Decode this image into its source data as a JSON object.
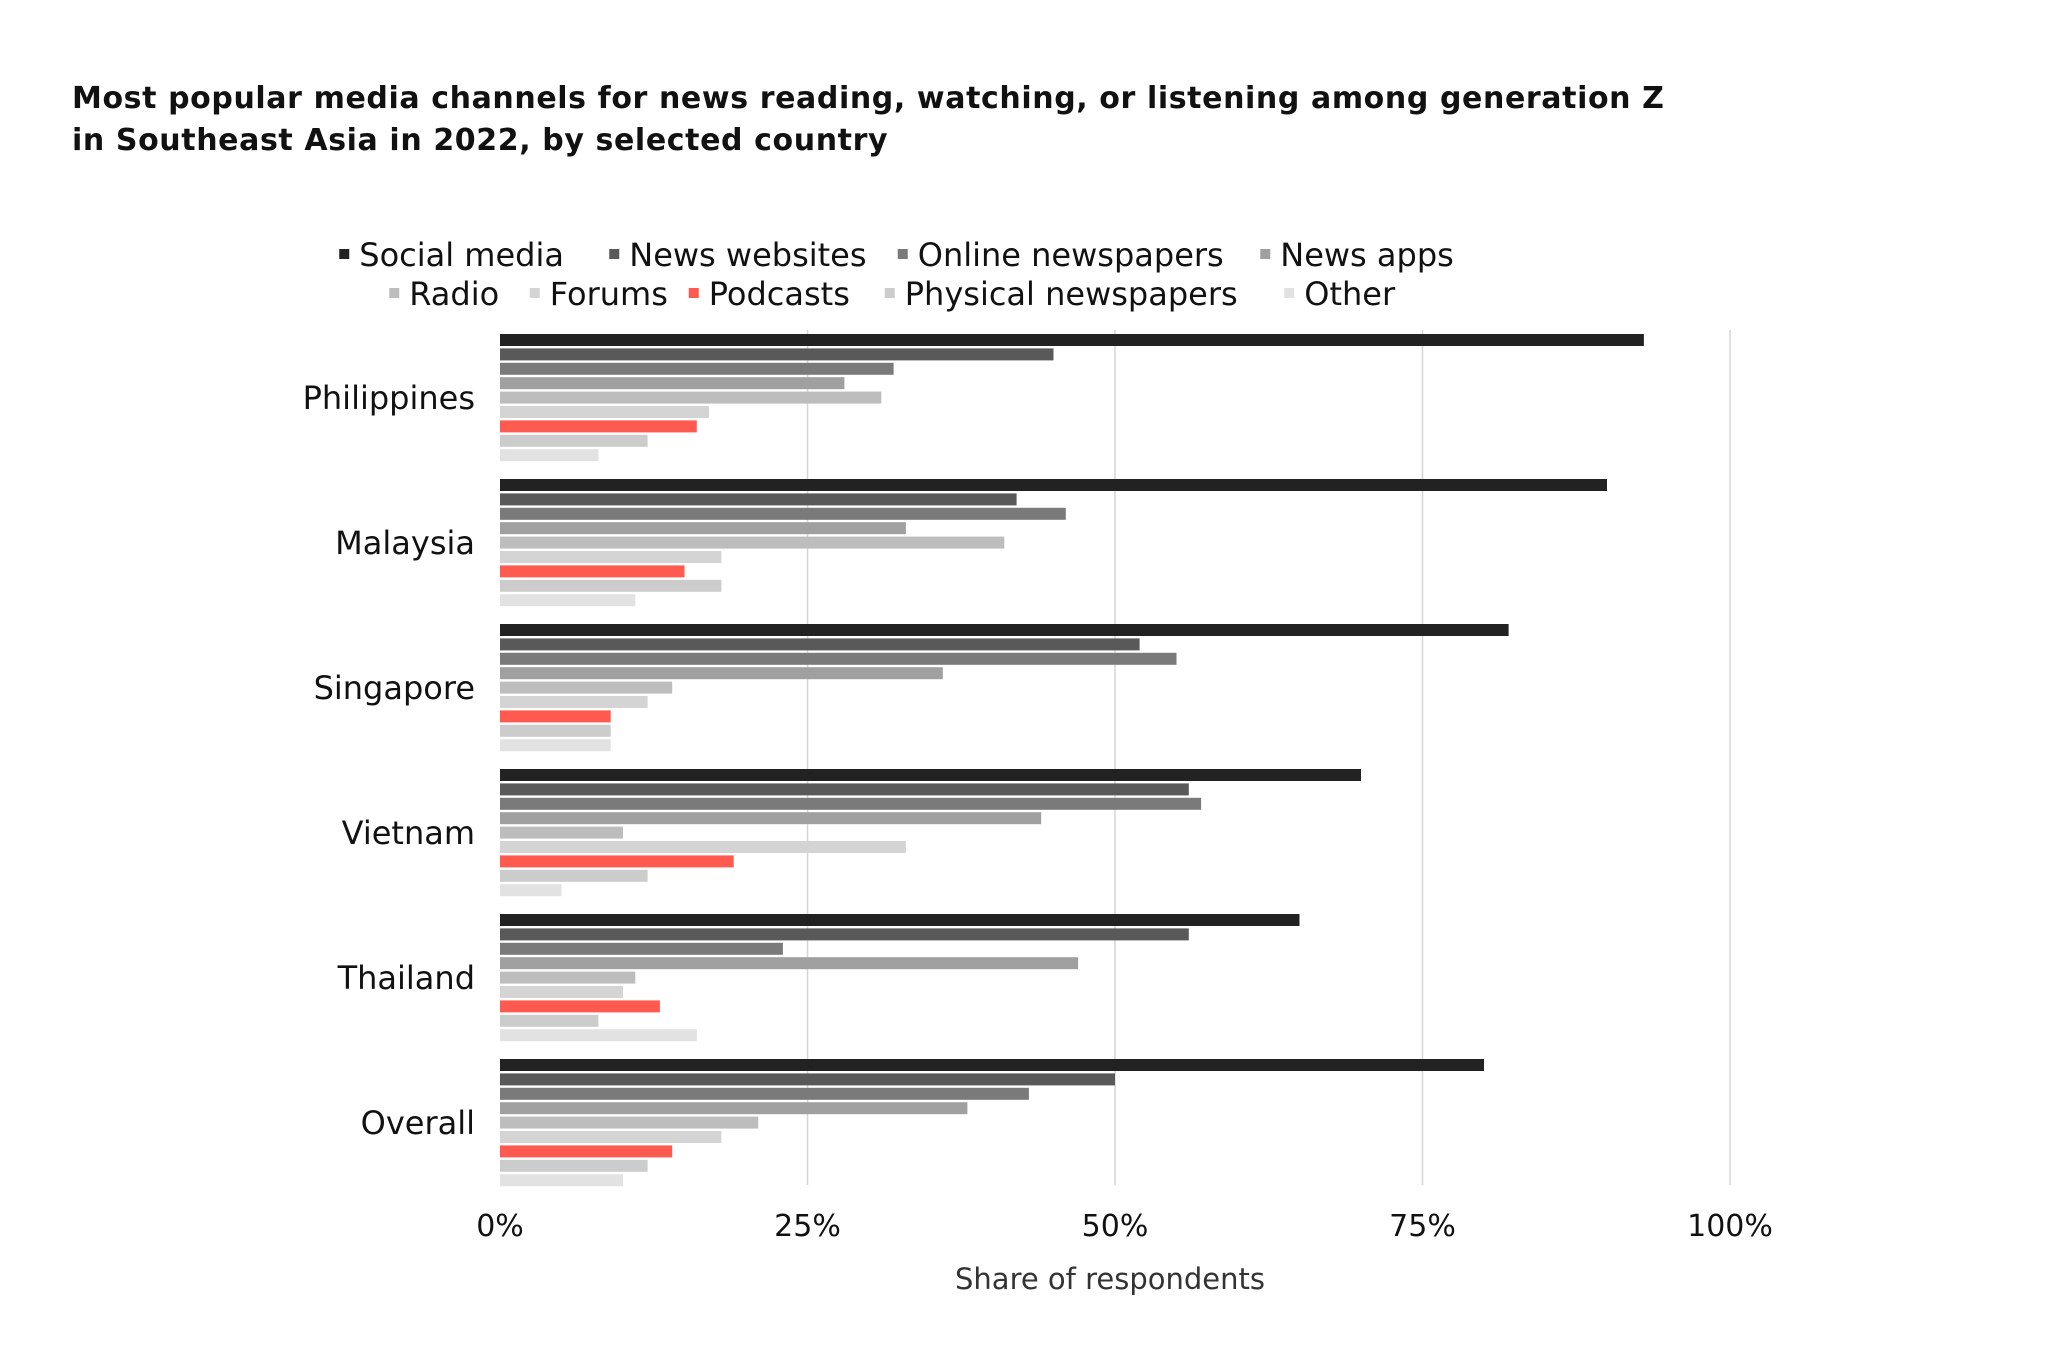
{
  "chart_data": {
    "type": "bar",
    "orientation": "horizontal",
    "title": "Most popular media channels for news reading, watching, or listening among generation Z in Southeast Asia in 2022, by selected country",
    "title_lines": [
      "Most popular media channels for news reading, watching, or listening among generation Z",
      "in Southeast Asia in 2022, by selected country"
    ],
    "xlabel": "Share of respondents",
    "ylabel": "",
    "xlim": [
      0,
      100
    ],
    "x_ticks": [
      0,
      25,
      50,
      75,
      100
    ],
    "x_tick_labels": [
      "0%",
      "25%",
      "50%",
      "75%",
      "100%"
    ],
    "grid": true,
    "legend_position": "top-center",
    "categories": [
      "Philippines",
      "Malaysia",
      "Singapore",
      "Vietnam",
      "Thailand",
      "Overall"
    ],
    "series": [
      {
        "name": "Social media",
        "color": "#222222",
        "values": [
          93,
          90,
          82,
          70,
          65,
          80
        ]
      },
      {
        "name": "News websites",
        "color": "#595959",
        "values": [
          45,
          42,
          52,
          56,
          56,
          50
        ]
      },
      {
        "name": "Online newspapers",
        "color": "#7a7a7a",
        "values": [
          32,
          46,
          55,
          57,
          23,
          43
        ]
      },
      {
        "name": "News apps",
        "color": "#a0a0a0",
        "values": [
          28,
          33,
          36,
          44,
          47,
          38
        ]
      },
      {
        "name": "Radio",
        "color": "#bdbdbd",
        "values": [
          31,
          41,
          14,
          10,
          11,
          21
        ]
      },
      {
        "name": "Forums",
        "color": "#d4d4d4",
        "values": [
          17,
          18,
          12,
          33,
          10,
          18
        ]
      },
      {
        "name": "Podcasts",
        "color": "#ff5a4f",
        "values": [
          16,
          15,
          9,
          19,
          13,
          14
        ]
      },
      {
        "name": "Physical newspapers",
        "color": "#cccccc",
        "values": [
          12,
          18,
          9,
          12,
          8,
          12
        ]
      },
      {
        "name": "Other",
        "color": "#e2e2e2",
        "values": [
          8,
          11,
          9,
          5,
          16,
          10
        ]
      }
    ]
  }
}
